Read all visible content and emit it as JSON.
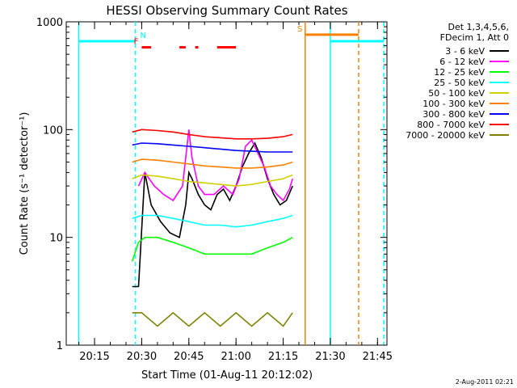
{
  "chart_data": {
    "type": "line",
    "title": "HESSI Observing Summary Count Rates",
    "xlabel": "Start Time (01-Aug-11 20:12:02)",
    "ylabel": "Count Rate (s⁻¹ detector⁻¹)",
    "yscale": "log",
    "ylim": [
      1,
      1000
    ],
    "xlim_minutes": [
      20.1,
      21.8
    ],
    "x_ticks": [
      "20:15",
      "20:30",
      "20:45",
      "21:00",
      "21:15",
      "21:30",
      "21:45"
    ],
    "y_ticks": [
      "1",
      "10",
      "100",
      "1000"
    ],
    "legend_header": [
      "Det 1,3,4,5,6,",
      "FDecim 1, Att 0"
    ],
    "legend_position": "right",
    "footer": "2-Aug-2011 02:21",
    "series": [
      {
        "name": "3 - 6 keV",
        "color": "#000000",
        "x": [
          "20:27",
          "20:29",
          "20:31",
          "20:33",
          "20:36",
          "20:39",
          "20:42",
          "20:44",
          "20:45",
          "20:46",
          "20:48",
          "20:50",
          "20:52",
          "20:54",
          "20:56",
          "20:58",
          "21:00",
          "21:02",
          "21:04",
          "21:06",
          "21:08",
          "21:10",
          "21:12",
          "21:14",
          "21:16",
          "21:18"
        ],
        "y": [
          3.5,
          3.5,
          40,
          20,
          14,
          11,
          10,
          20,
          40,
          35,
          25,
          20,
          18,
          25,
          28,
          22,
          30,
          45,
          60,
          75,
          55,
          35,
          25,
          20,
          22,
          30
        ]
      },
      {
        "name": "6 - 12 keV",
        "color": "#ff00ff",
        "x": [
          "20:29",
          "20:31",
          "20:34",
          "20:37",
          "20:40",
          "20:43",
          "20:45",
          "20:46",
          "20:48",
          "20:50",
          "20:53",
          "20:56",
          "20:59",
          "21:01",
          "21:03",
          "21:05",
          "21:07",
          "21:09",
          "21:11",
          "21:13",
          "21:15",
          "21:17",
          "21:18"
        ],
        "y": [
          30,
          40,
          30,
          25,
          22,
          30,
          100,
          55,
          30,
          25,
          25,
          30,
          25,
          35,
          70,
          80,
          60,
          45,
          30,
          25,
          22,
          28,
          35
        ]
      },
      {
        "name": "12 - 25 keV",
        "color": "#00ff00",
        "x": [
          "20:27",
          "20:29",
          "20:31",
          "20:35",
          "20:40",
          "20:45",
          "20:50",
          "20:55",
          "21:00",
          "21:05",
          "21:10",
          "21:15",
          "21:18"
        ],
        "y": [
          6,
          9,
          10,
          10,
          9,
          8,
          7,
          7,
          7,
          7,
          8,
          9,
          10
        ]
      },
      {
        "name": "25 - 50 keV",
        "color": "#00ffff",
        "x": [
          "20:27",
          "20:30",
          "20:35",
          "20:40",
          "20:45",
          "20:50",
          "20:55",
          "21:00",
          "21:05",
          "21:10",
          "21:15",
          "21:18"
        ],
        "y": [
          15,
          16,
          16,
          15,
          14,
          13,
          13,
          12.5,
          13,
          14,
          15,
          16
        ]
      },
      {
        "name": "50 - 100 keV",
        "color": "#d0d000",
        "x": [
          "20:27",
          "20:30",
          "20:35",
          "20:40",
          "20:45",
          "20:50",
          "20:55",
          "21:00",
          "21:05",
          "21:10",
          "21:15",
          "21:18"
        ],
        "y": [
          35,
          38,
          37,
          35,
          33,
          32,
          31,
          30,
          31,
          33,
          35,
          38
        ]
      },
      {
        "name": "100 - 300 keV",
        "color": "#ff8000",
        "x": [
          "20:27",
          "20:30",
          "20:35",
          "20:40",
          "20:45",
          "20:50",
          "20:55",
          "21:00",
          "21:05",
          "21:10",
          "21:15",
          "21:18"
        ],
        "y": [
          50,
          53,
          52,
          50,
          48,
          46,
          45,
          44,
          44,
          45,
          47,
          50
        ]
      },
      {
        "name": "300 - 800 keV",
        "color": "#0000ff",
        "x": [
          "20:27",
          "20:30",
          "20:35",
          "20:40",
          "20:45",
          "20:50",
          "20:55",
          "21:00",
          "21:05",
          "21:10",
          "21:15",
          "21:18"
        ],
        "y": [
          72,
          75,
          74,
          72,
          70,
          68,
          66,
          64,
          63,
          62,
          62,
          62
        ]
      },
      {
        "name": "800 - 7000 keV",
        "color": "#ff0000",
        "x": [
          "20:27",
          "20:30",
          "20:35",
          "20:40",
          "20:45",
          "20:50",
          "20:55",
          "21:00",
          "21:05",
          "21:10",
          "21:15",
          "21:18"
        ],
        "y": [
          95,
          100,
          98,
          95,
          90,
          86,
          84,
          82,
          82,
          83,
          86,
          90
        ]
      },
      {
        "name": "7000 - 20000 keV",
        "color": "#808000",
        "x": [
          "20:27",
          "20:30",
          "20:35",
          "20:40",
          "20:45",
          "20:50",
          "20:55",
          "21:00",
          "21:05",
          "21:10",
          "21:15",
          "21:18"
        ],
        "y": [
          2,
          2,
          1.5,
          2,
          1.5,
          2,
          1.5,
          2,
          1.5,
          2,
          1.5,
          2
        ]
      }
    ],
    "flags": [
      {
        "label": "N",
        "color": "#00ffff",
        "level": 660,
        "segments": [
          [
            "20:10",
            "20:28"
          ],
          [
            "21:30",
            "21:47"
          ]
        ],
        "label_at": "20:30"
      },
      {
        "label": "F",
        "color": "#ff0000",
        "level": 580,
        "segments": [
          [
            "20:30",
            "20:33"
          ],
          [
            "20:42",
            "20:44"
          ],
          [
            "20:47",
            "20:48"
          ],
          [
            "20:54",
            "21:00"
          ]
        ],
        "label_at": "20:28"
      },
      {
        "label": "S",
        "color": "#ff8000",
        "level": 760,
        "segments": [
          [
            "21:22",
            "21:39"
          ]
        ],
        "label_at": "21:20"
      }
    ],
    "markers": [
      {
        "time": "20:10",
        "color": "#00ffff",
        "style": "solid"
      },
      {
        "time": "20:28",
        "color": "#00ffff",
        "style": "dashed"
      },
      {
        "time": "21:22",
        "color": "#ff8000",
        "style": "solid"
      },
      {
        "time": "21:30",
        "color": "#00ffff",
        "style": "solid"
      },
      {
        "time": "21:39",
        "color": "#ff8000",
        "style": "dashed"
      },
      {
        "time": "21:47",
        "color": "#00ffff",
        "style": "dashed"
      }
    ]
  }
}
